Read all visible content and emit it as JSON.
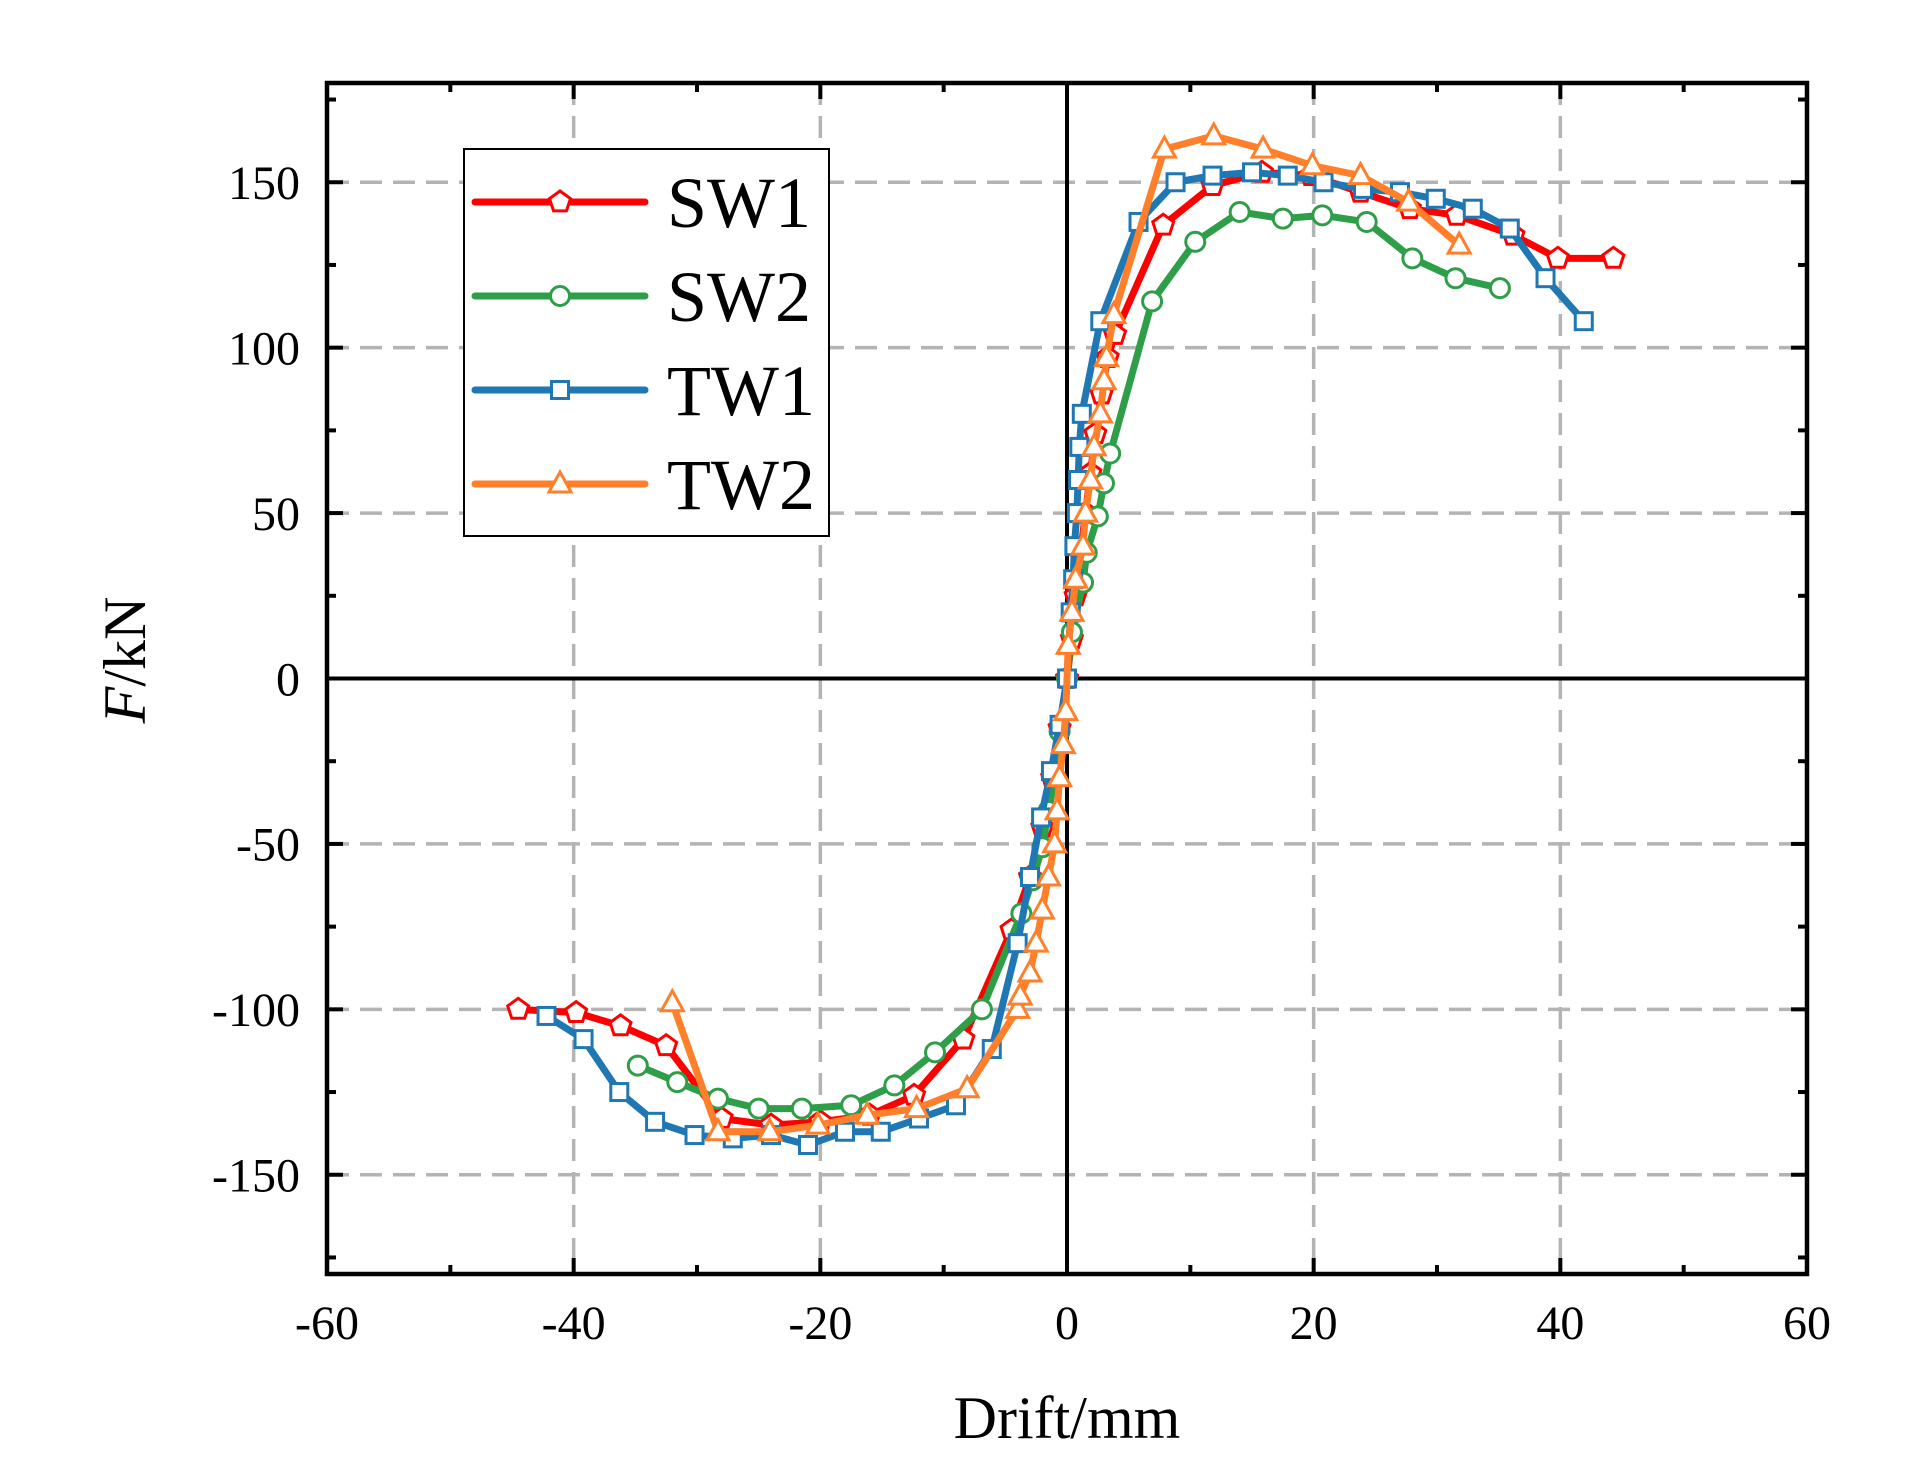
{
  "chart_data": {
    "type": "line",
    "xlabel": "Drift/mm",
    "ylabel": "F/kN",
    "xlim": [
      -60,
      60
    ],
    "ylim": [
      -180,
      180
    ],
    "xticks": [
      -60,
      -40,
      -20,
      0,
      20,
      40,
      60
    ],
    "yticks": [
      -150,
      -100,
      -50,
      0,
      50,
      100,
      150
    ],
    "x_minor_step": 10,
    "y_minor_step": 25,
    "grid": true,
    "legend_position": "top-left",
    "series": [
      {
        "name": "SW1",
        "color": "#ff0000",
        "marker": "pentagon",
        "points": [
          [
            -44.5,
            -100
          ],
          [
            -39.8,
            -101
          ],
          [
            -36.2,
            -105
          ],
          [
            -32.5,
            -111
          ],
          [
            -28.0,
            -133
          ],
          [
            -24.0,
            -135
          ],
          [
            -20.0,
            -134
          ],
          [
            -16.0,
            -132
          ],
          [
            -12.4,
            -126
          ],
          [
            -8.4,
            -109
          ],
          [
            -4.5,
            -76
          ],
          [
            -3.0,
            -60
          ],
          [
            -2.0,
            -45
          ],
          [
            -1.2,
            -30
          ],
          [
            -0.6,
            -15
          ],
          [
            0.0,
            0
          ],
          [
            0.4,
            12
          ],
          [
            0.7,
            25
          ],
          [
            1.1,
            38
          ],
          [
            1.5,
            50
          ],
          [
            1.9,
            62
          ],
          [
            2.3,
            74
          ],
          [
            2.8,
            86
          ],
          [
            3.3,
            97
          ],
          [
            3.9,
            104
          ],
          [
            7.8,
            137
          ],
          [
            11.8,
            149
          ],
          [
            15.8,
            153
          ],
          [
            19.8,
            152
          ],
          [
            23.8,
            147
          ],
          [
            27.8,
            142
          ],
          [
            31.6,
            140
          ],
          [
            36.2,
            134
          ],
          [
            39.8,
            127
          ],
          [
            44.3,
            127
          ]
        ]
      },
      {
        "name": "SW2",
        "color": "#2e9e48",
        "marker": "circle",
        "points": [
          [
            -34.8,
            -117
          ],
          [
            -31.6,
            -122
          ],
          [
            -28.3,
            -127
          ],
          [
            -25.0,
            -130
          ],
          [
            -21.5,
            -130
          ],
          [
            -17.5,
            -129
          ],
          [
            -14.0,
            -123
          ],
          [
            -10.7,
            -113
          ],
          [
            -6.9,
            -100
          ],
          [
            -3.7,
            -71
          ],
          [
            -2.8,
            -61
          ],
          [
            -2.0,
            -51
          ],
          [
            -1.5,
            -40
          ],
          [
            -1.0,
            -30
          ],
          [
            -0.6,
            -16
          ],
          [
            0.0,
            0
          ],
          [
            0.4,
            14
          ],
          [
            1.3,
            29
          ],
          [
            1.6,
            38
          ],
          [
            2.5,
            49
          ],
          [
            3.0,
            59
          ],
          [
            3.5,
            68
          ],
          [
            6.9,
            114
          ],
          [
            10.4,
            132
          ],
          [
            14.0,
            141
          ],
          [
            17.5,
            139
          ],
          [
            20.7,
            140
          ],
          [
            24.3,
            138
          ],
          [
            28.0,
            127
          ],
          [
            31.5,
            121
          ],
          [
            35.1,
            118
          ]
        ]
      },
      {
        "name": "TW1",
        "color": "#1f77b4",
        "marker": "square",
        "points": [
          [
            -42.2,
            -102
          ],
          [
            -39.2,
            -109
          ],
          [
            -36.3,
            -125
          ],
          [
            -33.4,
            -134
          ],
          [
            -30.2,
            -138
          ],
          [
            -27.1,
            -139
          ],
          [
            -24.0,
            -138
          ],
          [
            -21.0,
            -141
          ],
          [
            -18.0,
            -137
          ],
          [
            -15.1,
            -137
          ],
          [
            -12.0,
            -133
          ],
          [
            -9.0,
            -129
          ],
          [
            -6.1,
            -112
          ],
          [
            -4.0,
            -80
          ],
          [
            -3.0,
            -60
          ],
          [
            -2.1,
            -42
          ],
          [
            -1.3,
            -28
          ],
          [
            -0.6,
            -14
          ],
          [
            0.0,
            0
          ],
          [
            0.3,
            20
          ],
          [
            0.5,
            30
          ],
          [
            0.6,
            40
          ],
          [
            0.8,
            50
          ],
          [
            0.9,
            60
          ],
          [
            1.0,
            70
          ],
          [
            1.2,
            80
          ],
          [
            2.7,
            108
          ],
          [
            5.8,
            138
          ],
          [
            8.8,
            150
          ],
          [
            11.8,
            152
          ],
          [
            15.0,
            153
          ],
          [
            17.9,
            152
          ],
          [
            20.8,
            150
          ],
          [
            24.0,
            148
          ],
          [
            27.0,
            147
          ],
          [
            29.9,
            145
          ],
          [
            32.9,
            142
          ],
          [
            35.9,
            136
          ],
          [
            38.8,
            121
          ],
          [
            41.9,
            108
          ]
        ]
      },
      {
        "name": "TW2",
        "color": "#ff7f2a",
        "marker": "triangle",
        "points": [
          [
            -32.0,
            -98
          ],
          [
            -28.3,
            -137
          ],
          [
            -24.1,
            -137
          ],
          [
            -20.2,
            -135
          ],
          [
            -16.2,
            -132
          ],
          [
            -12.2,
            -130
          ],
          [
            -8.1,
            -124
          ],
          [
            -4.0,
            -100
          ],
          [
            -3.8,
            -96
          ],
          [
            -3.0,
            -89
          ],
          [
            -2.5,
            -80
          ],
          [
            -2.0,
            -70
          ],
          [
            -1.5,
            -60
          ],
          [
            -1.0,
            -50
          ],
          [
            -0.8,
            -40
          ],
          [
            -0.6,
            -30
          ],
          [
            -0.3,
            -20
          ],
          [
            -0.1,
            -10
          ],
          [
            0.1,
            10
          ],
          [
            0.4,
            20
          ],
          [
            0.7,
            30
          ],
          [
            1.3,
            40
          ],
          [
            1.5,
            50
          ],
          [
            1.9,
            60
          ],
          [
            2.2,
            70
          ],
          [
            2.7,
            80
          ],
          [
            3.0,
            90
          ],
          [
            3.2,
            97
          ],
          [
            3.8,
            110
          ],
          [
            7.9,
            160
          ],
          [
            11.9,
            164
          ],
          [
            15.9,
            160
          ],
          [
            19.9,
            155
          ],
          [
            23.8,
            152
          ],
          [
            27.7,
            144
          ],
          [
            31.8,
            131
          ]
        ]
      }
    ]
  }
}
